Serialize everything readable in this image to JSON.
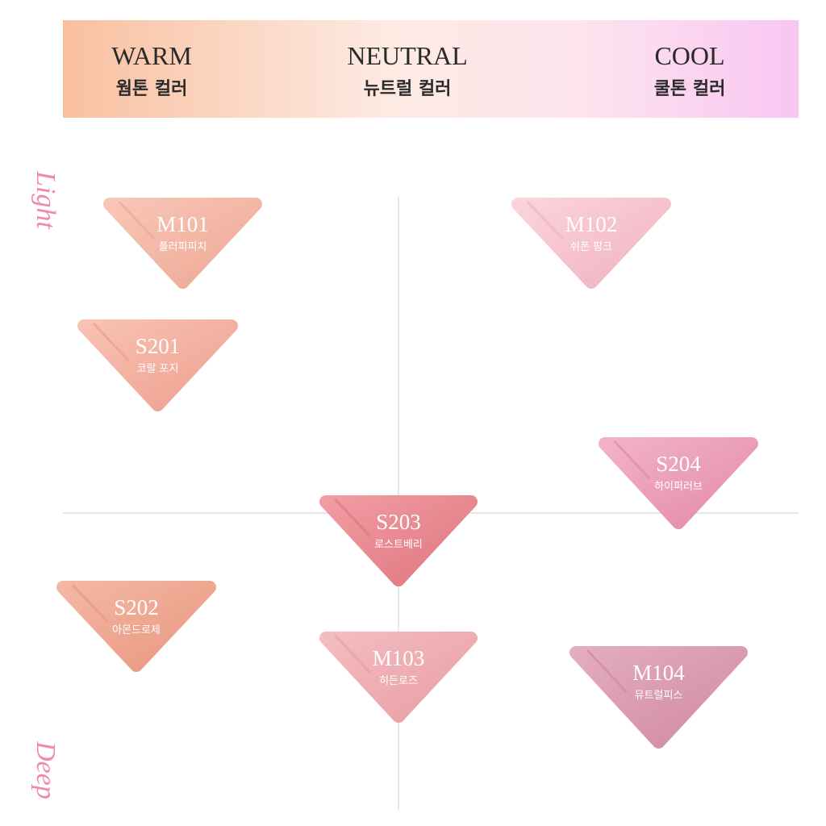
{
  "header": {
    "columns": [
      {
        "title": "WARM",
        "subtitle": "웜톤 컬러"
      },
      {
        "title": "NEUTRAL",
        "subtitle": "뉴트럴 컬러"
      },
      {
        "title": "COOL",
        "subtitle": "쿨톤 컬러"
      }
    ]
  },
  "axis": {
    "top": "Light",
    "bottom": "Deep"
  },
  "swatches": [
    {
      "code": "M101",
      "name": "플러피피치"
    },
    {
      "code": "M102",
      "name": "쉬폰 핑크"
    },
    {
      "code": "S201",
      "name": "코랄 포지"
    },
    {
      "code": "S204",
      "name": "하이퍼러브"
    },
    {
      "code": "S203",
      "name": "로스트베리"
    },
    {
      "code": "S202",
      "name": "아몬드로제"
    },
    {
      "code": "M103",
      "name": "히든로즈"
    },
    {
      "code": "M104",
      "name": "뮤트럴피스"
    }
  ]
}
